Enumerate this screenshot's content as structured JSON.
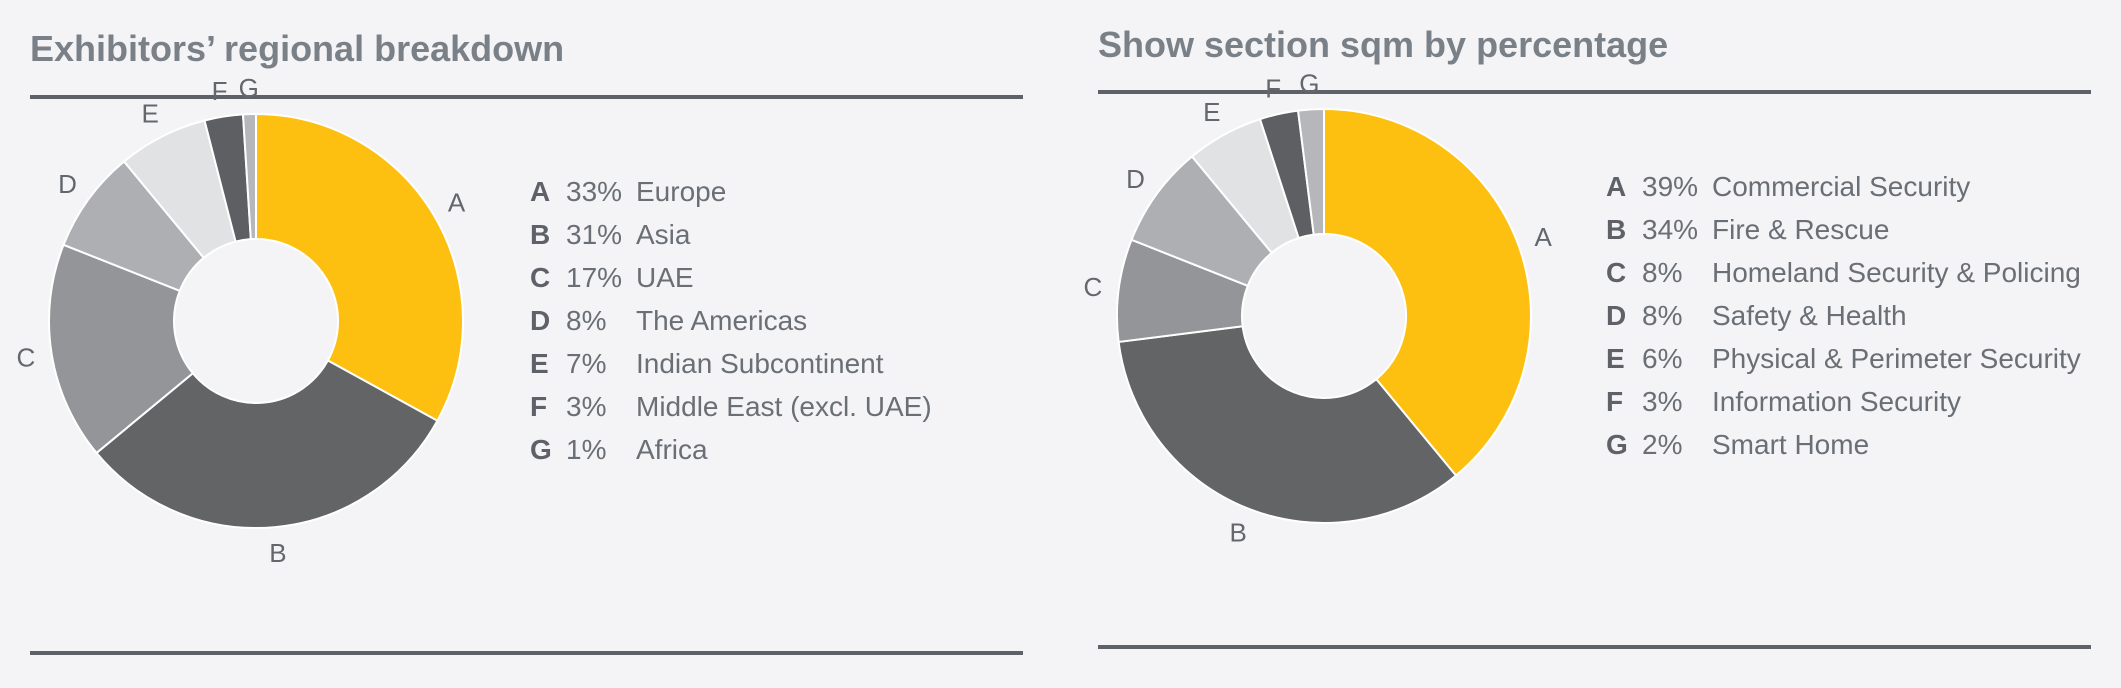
{
  "colors": {
    "accent": "#fdc010",
    "slice_A": "#fdc010",
    "slice_B": "#636466",
    "slice_C": "#939598",
    "slice_D": "#aeafb2",
    "slice_E": "#e1e2e4",
    "slice_F": "#5d5f62",
    "slice_G": "#b6b7ba",
    "rule": "#5e6268",
    "title": "#7a8087",
    "background": "#f4f4f6"
  },
  "chart_data": [
    {
      "type": "pie",
      "variant": "donut",
      "title": "Exhibitors’ regional breakdown",
      "legend_position": "right",
      "slices": [
        {
          "key": "A",
          "label": "Europe",
          "value": 33,
          "display": "33%",
          "color": "#fdc010"
        },
        {
          "key": "B",
          "label": "Asia",
          "value": 31,
          "display": "31%",
          "color": "#636466"
        },
        {
          "key": "C",
          "label": "UAE",
          "value": 17,
          "display": "17%",
          "color": "#939598"
        },
        {
          "key": "D",
          "label": "The Americas",
          "value": 8,
          "display": "8%",
          "color": "#aeafb2"
        },
        {
          "key": "E",
          "label": "Indian Subcontinent",
          "value": 7,
          "display": "7%",
          "color": "#e1e2e4"
        },
        {
          "key": "F",
          "label": "Middle East (excl. UAE)",
          "value": 3,
          "display": "3%",
          "color": "#5d5f62"
        },
        {
          "key": "G",
          "label": "Africa",
          "value": 1,
          "display": "1%",
          "color": "#b6b7ba"
        }
      ]
    },
    {
      "type": "pie",
      "variant": "donut",
      "title": "Show section sqm by percentage",
      "legend_position": "right",
      "slices": [
        {
          "key": "A",
          "label": "Commercial Security",
          "value": 39,
          "display": "39%",
          "color": "#fdc010"
        },
        {
          "key": "B",
          "label": "Fire & Rescue",
          "value": 34,
          "display": "34%",
          "color": "#636466"
        },
        {
          "key": "C",
          "label": "Homeland Security & Policing",
          "value": 8,
          "display": "8%",
          "color": "#939598"
        },
        {
          "key": "D",
          "label": "Safety & Health",
          "value": 8,
          "display": "8%",
          "color": "#aeafb2"
        },
        {
          "key": "E",
          "label": "Physical & Perimeter Security",
          "value": 6,
          "display": "6%",
          "color": "#e1e2e4"
        },
        {
          "key": "F",
          "label": "Information Security",
          "value": 3,
          "display": "3%",
          "color": "#5d5f62"
        },
        {
          "key": "G",
          "label": "Smart Home",
          "value": 2,
          "display": "2%",
          "color": "#b6b7ba"
        }
      ]
    }
  ]
}
